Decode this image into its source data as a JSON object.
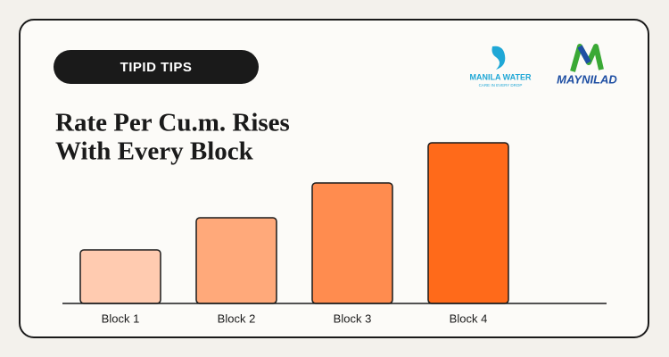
{
  "badge": "TIPID TIPS",
  "logos": {
    "manila_water": {
      "name": "MANILA WATER",
      "tagline": "CARE IN EVERY DROP"
    },
    "maynilad": {
      "name": "MAYNILAD"
    }
  },
  "chart_data": {
    "type": "bar",
    "title": [
      "Rate Per Cu.m. Rises",
      "With Every Block"
    ],
    "categories": [
      "Block 1",
      "Block 2",
      "Block 3",
      "Block 4"
    ],
    "values": [
      60,
      96,
      135,
      180
    ],
    "colors": [
      "#ffcbb0",
      "#ffa97a",
      "#ff8c4f",
      "#ff6a1a"
    ],
    "ylim": [
      0,
      200
    ]
  }
}
